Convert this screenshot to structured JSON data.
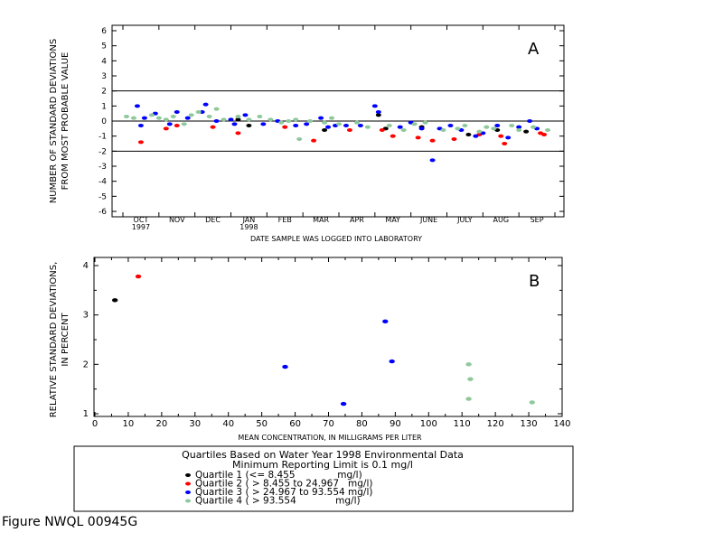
{
  "figure_label": "Figure NWQL 00945G",
  "legend": {
    "title_line1": "Quartiles Based on Water Year 1998 Environmental Data",
    "title_line2": "Minimum Reporting Limit is 0.1 mg/l",
    "items": [
      {
        "label": "Quartile 1 (<= 8.455              mg/l)",
        "color": "#000000"
      },
      {
        "label": "Quartile 2 ( > 8.455 to 24.967   mg/l)",
        "color": "#ff0000"
      },
      {
        "label": "Quartile 3 ( > 24.967 to 93.554 mg/l)",
        "color": "#0000ff"
      },
      {
        "label": "Quartile 4 ( > 93.554             mg/l)",
        "color": "#8fc89a"
      }
    ]
  },
  "chart_data": [
    {
      "type": "scatter",
      "panel_letter": "A",
      "ylabel_line1": "NUMBER OF STANDARD DEVIATIONS",
      "ylabel_line2": "FROM MOST PROBABLE VALUE",
      "xlabel": "DATE SAMPLE WAS LOGGED INTO LABORATORY",
      "ylim": [
        -6,
        6
      ],
      "yticks": [
        "-6",
        "-5",
        "-4",
        "-3",
        "-2",
        "-1",
        "0",
        "1",
        "2",
        "3",
        "4",
        "5",
        "6"
      ],
      "xlim_months": [
        0,
        12
      ],
      "month_labels": [
        "OCT",
        "NOV",
        "DEC",
        "JAN",
        "FEB",
        "MAR",
        "APR",
        "MAY",
        "JUNE",
        "JULY",
        "AUG",
        "SEP"
      ],
      "year_labels": [
        {
          "month_index": 0,
          "text": "1997"
        },
        {
          "month_index": 3,
          "text": "1998"
        }
      ],
      "reference_lines": [
        2,
        0,
        -2
      ],
      "series": [
        {
          "name": "Quartile 1",
          "color": "#000000",
          "points": [
            [
              3.5,
              -0.3
            ],
            [
              3.2,
              0.1
            ],
            [
              5.6,
              -0.6
            ],
            [
              7.1,
              0.4
            ],
            [
              7.3,
              -0.5
            ],
            [
              8.3,
              -0.4
            ],
            [
              9.6,
              -0.9
            ],
            [
              10.4,
              -0.6
            ],
            [
              11.2,
              -0.7
            ]
          ]
        },
        {
          "name": "Quartile 2",
          "color": "#ff0000",
          "points": [
            [
              0.5,
              -1.4
            ],
            [
              1.2,
              -0.5
            ],
            [
              1.5,
              -0.3
            ],
            [
              2.5,
              -0.4
            ],
            [
              3.2,
              -0.8
            ],
            [
              4.5,
              -0.4
            ],
            [
              5.3,
              -1.3
            ],
            [
              6.3,
              -0.6
            ],
            [
              7.2,
              -0.6
            ],
            [
              7.5,
              -1.0
            ],
            [
              8.2,
              -1.1
            ],
            [
              8.6,
              -1.3
            ],
            [
              9.2,
              -1.2
            ],
            [
              9.9,
              -0.9
            ],
            [
              10.5,
              -1.0
            ],
            [
              10.6,
              -1.5
            ],
            [
              11.6,
              -0.8
            ],
            [
              11.7,
              -0.9
            ]
          ]
        },
        {
          "name": "Quartile 3",
          "color": "#0000ff",
          "points": [
            [
              0.4,
              1.0
            ],
            [
              0.5,
              -0.3
            ],
            [
              0.6,
              0.2
            ],
            [
              0.9,
              0.5
            ],
            [
              1.3,
              -0.2
            ],
            [
              1.5,
              0.6
            ],
            [
              1.8,
              0.2
            ],
            [
              2.2,
              0.6
            ],
            [
              2.3,
              1.1
            ],
            [
              2.6,
              0.0
            ],
            [
              3.0,
              0.1
            ],
            [
              3.1,
              -0.2
            ],
            [
              3.4,
              0.4
            ],
            [
              3.9,
              -0.2
            ],
            [
              4.3,
              0.0
            ],
            [
              4.8,
              -0.3
            ],
            [
              5.1,
              -0.2
            ],
            [
              5.5,
              0.2
            ],
            [
              5.7,
              -0.4
            ],
            [
              5.9,
              -0.3
            ],
            [
              6.2,
              -0.3
            ],
            [
              6.6,
              -0.3
            ],
            [
              7.0,
              1.0
            ],
            [
              7.1,
              0.6
            ],
            [
              7.7,
              -0.4
            ],
            [
              8.0,
              -0.1
            ],
            [
              8.3,
              -0.5
            ],
            [
              8.6,
              -2.6
            ],
            [
              8.8,
              -0.5
            ],
            [
              9.1,
              -0.3
            ],
            [
              9.4,
              -0.6
            ],
            [
              9.8,
              -1.0
            ],
            [
              10.0,
              -0.8
            ],
            [
              10.4,
              -0.3
            ],
            [
              10.7,
              -1.1
            ],
            [
              11.0,
              -0.4
            ],
            [
              11.3,
              0.0
            ],
            [
              11.5,
              -0.5
            ]
          ]
        },
        {
          "name": "Quartile 4",
          "color": "#8fc89a",
          "points": [
            [
              0.1,
              0.3
            ],
            [
              0.3,
              0.2
            ],
            [
              0.8,
              0.4
            ],
            [
              1.0,
              0.2
            ],
            [
              1.2,
              0.1
            ],
            [
              1.4,
              0.3
            ],
            [
              1.7,
              -0.2
            ],
            [
              1.9,
              0.4
            ],
            [
              2.1,
              0.6
            ],
            [
              2.4,
              0.3
            ],
            [
              2.6,
              0.8
            ],
            [
              2.8,
              0.1
            ],
            [
              3.2,
              0.3
            ],
            [
              3.5,
              0.1
            ],
            [
              3.8,
              0.3
            ],
            [
              4.1,
              0.1
            ],
            [
              4.4,
              -0.1
            ],
            [
              4.6,
              0.0
            ],
            [
              4.8,
              0.1
            ],
            [
              4.9,
              -1.2
            ],
            [
              5.2,
              0.0
            ],
            [
              5.6,
              -0.1
            ],
            [
              5.8,
              0.2
            ],
            [
              6.0,
              -0.2
            ],
            [
              6.5,
              -0.1
            ],
            [
              6.8,
              -0.4
            ],
            [
              7.4,
              -0.3
            ],
            [
              7.8,
              -0.6
            ],
            [
              8.1,
              -0.2
            ],
            [
              8.4,
              -0.1
            ],
            [
              8.9,
              -0.6
            ],
            [
              9.3,
              -0.5
            ],
            [
              9.5,
              -0.3
            ],
            [
              9.9,
              -0.7
            ],
            [
              10.1,
              -0.4
            ],
            [
              10.3,
              -0.5
            ],
            [
              10.8,
              -0.3
            ],
            [
              11.0,
              -0.6
            ],
            [
              11.4,
              -0.4
            ],
            [
              11.8,
              -0.6
            ]
          ]
        }
      ]
    },
    {
      "type": "scatter",
      "panel_letter": "B",
      "ylabel_line1": "RELATIVE STANDARD DEVIATIONS,",
      "ylabel_line2": "IN PERCENT",
      "xlabel": "MEAN CONCENTRATION, IN MILLIGRAMS PER LITER",
      "xlim": [
        0,
        140
      ],
      "ylim": [
        0.9,
        4.1
      ],
      "xticks": [
        "0",
        "10",
        "20",
        "30",
        "40",
        "50",
        "60",
        "70",
        "80",
        "90",
        "100",
        "110",
        "120",
        "130",
        "140"
      ],
      "yticks": [
        "1",
        "2",
        "3",
        "4"
      ],
      "series": [
        {
          "name": "Quartile 1",
          "color": "#000000",
          "points": [
            [
              6.0,
              3.3
            ]
          ]
        },
        {
          "name": "Quartile 2",
          "color": "#ff0000",
          "points": [
            [
              13.0,
              3.78
            ]
          ]
        },
        {
          "name": "Quartile 3",
          "color": "#0000ff",
          "points": [
            [
              57.0,
              1.95
            ],
            [
              74.5,
              1.2
            ],
            [
              87.0,
              2.87
            ],
            [
              89.0,
              2.06
            ]
          ]
        },
        {
          "name": "Quartile 4",
          "color": "#8fc89a",
          "points": [
            [
              112.0,
              2.0
            ],
            [
              112.5,
              1.7
            ],
            [
              112.0,
              1.3
            ],
            [
              131.0,
              1.23
            ]
          ]
        }
      ]
    }
  ]
}
